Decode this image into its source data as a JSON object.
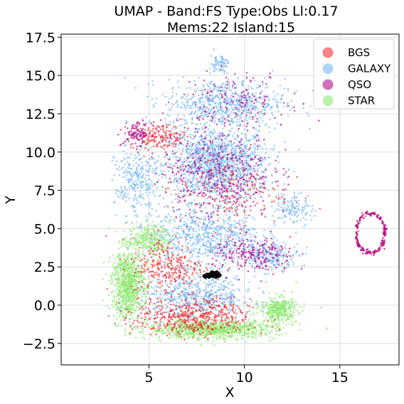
{
  "chart_data": {
    "type": "scatter",
    "title": "UMAP  -  Band:FS Type:Obs Ll:0.17",
    "subtitle": "Mems:22 Island:15",
    "xlabel": "X",
    "ylabel": "Y",
    "xlim": [
      0.4,
      18.1
    ],
    "ylim": [
      -3.9,
      17.7
    ],
    "xticks": [
      5,
      10,
      15
    ],
    "yticks": [
      -2.5,
      0.0,
      2.5,
      5.0,
      7.5,
      10.0,
      12.5,
      15.0,
      17.5
    ],
    "ytick_labels": [
      "−2.5",
      "0.0",
      "2.5",
      "5.0",
      "7.5",
      "10.0",
      "12.5",
      "15.0",
      "17.5"
    ],
    "grid": true,
    "legend_position": "top-right",
    "series": [
      {
        "name": "BGS",
        "color": "#f03030"
      },
      {
        "name": "GALAXY",
        "color": "#7ab8f5"
      },
      {
        "name": "QSO",
        "color": "#b0108f"
      },
      {
        "name": "STAR",
        "color": "#8eea70"
      }
    ],
    "highlight_island": {
      "color": "#000000",
      "points": [
        [
          7.9,
          1.9
        ],
        [
          8.0,
          1.95
        ],
        [
          8.1,
          1.9
        ],
        [
          8.2,
          2.0
        ],
        [
          8.3,
          1.95
        ],
        [
          8.4,
          2.1
        ],
        [
          8.5,
          1.95
        ],
        [
          8.6,
          2.05
        ],
        [
          8.15,
          1.85
        ],
        [
          8.35,
          1.9
        ],
        [
          8.45,
          2.0
        ],
        [
          8.7,
          1.95
        ],
        [
          8.55,
          2.15
        ],
        [
          8.25,
          2.05
        ],
        [
          7.95,
          1.85
        ],
        [
          8.05,
          2.0
        ],
        [
          8.5,
          1.85
        ],
        [
          8.6,
          1.9
        ],
        [
          8.4,
          1.95
        ],
        [
          8.2,
          1.9
        ],
        [
          8.3,
          2.15
        ],
        [
          8.65,
          2.0
        ]
      ]
    },
    "regions": [
      {
        "series": "GALAXY",
        "n": 1400,
        "cx": 8.5,
        "cy": 9.2,
        "sx": 2.3,
        "sy": 2.0
      },
      {
        "series": "GALAXY",
        "n": 650,
        "cx": 9.0,
        "cy": 13.2,
        "sx": 2.6,
        "sy": 1.3
      },
      {
        "series": "GALAXY",
        "n": 700,
        "cx": 8.0,
        "cy": 4.5,
        "sx": 2.4,
        "sy": 1.6
      },
      {
        "series": "GALAXY",
        "n": 600,
        "cx": 7.6,
        "cy": 0.5,
        "sx": 2.5,
        "sy": 1.2
      },
      {
        "series": "GALAXY",
        "n": 280,
        "cx": 4.3,
        "cy": 8.0,
        "sx": 0.9,
        "sy": 2.0
      },
      {
        "series": "GALAXY",
        "n": 200,
        "cx": 11.5,
        "cy": 3.2,
        "sx": 1.2,
        "sy": 0.7
      },
      {
        "series": "GALAXY",
        "n": 120,
        "cx": 12.6,
        "cy": 6.3,
        "sx": 0.8,
        "sy": 0.9
      },
      {
        "series": "GALAXY",
        "n": 70,
        "cx": 8.7,
        "cy": 15.8,
        "sx": 0.4,
        "sy": 0.5
      },
      {
        "series": "STAR",
        "n": 900,
        "cx": 8.3,
        "cy": -1.6,
        "sx": 2.8,
        "sy": 0.5
      },
      {
        "series": "STAR",
        "n": 800,
        "cx": 3.9,
        "cy": 1.4,
        "sx": 0.7,
        "sy": 1.9
      },
      {
        "series": "STAR",
        "n": 350,
        "cx": 11.8,
        "cy": -0.3,
        "sx": 0.8,
        "sy": 0.7
      },
      {
        "series": "STAR",
        "n": 250,
        "cx": 5.0,
        "cy": 4.3,
        "sx": 0.9,
        "sy": 0.8
      },
      {
        "series": "BGS",
        "n": 500,
        "cx": 7.3,
        "cy": -0.8,
        "sx": 2.5,
        "sy": 1.0
      },
      {
        "series": "BGS",
        "n": 300,
        "cx": 6.0,
        "cy": 2.5,
        "sx": 1.6,
        "sy": 1.6
      },
      {
        "series": "BGS",
        "n": 160,
        "cx": 5.5,
        "cy": 11.0,
        "sx": 1.2,
        "sy": 0.7
      },
      {
        "series": "BGS",
        "n": 200,
        "cx": 9.0,
        "cy": 7.5,
        "sx": 2.5,
        "sy": 2.0
      },
      {
        "series": "QSO",
        "n": 450,
        "cx": 8.6,
        "cy": 8.8,
        "sx": 2.4,
        "sy": 2.6
      },
      {
        "series": "QSO",
        "n": 220,
        "cx": 10.5,
        "cy": 3.2,
        "sx": 1.8,
        "sy": 1.0
      },
      {
        "series": "QSO",
        "n": 140,
        "cx": 9.5,
        "cy": 13.5,
        "sx": 2.3,
        "sy": 1.4
      },
      {
        "series": "QSO",
        "n": 100,
        "cx": 4.4,
        "cy": 11.2,
        "sx": 0.6,
        "sy": 0.6
      }
    ],
    "ring": {
      "n_qso": 160,
      "n_bgs": 50,
      "cx": 16.6,
      "cy": 4.7,
      "rx": 0.75,
      "ry": 1.3
    }
  }
}
